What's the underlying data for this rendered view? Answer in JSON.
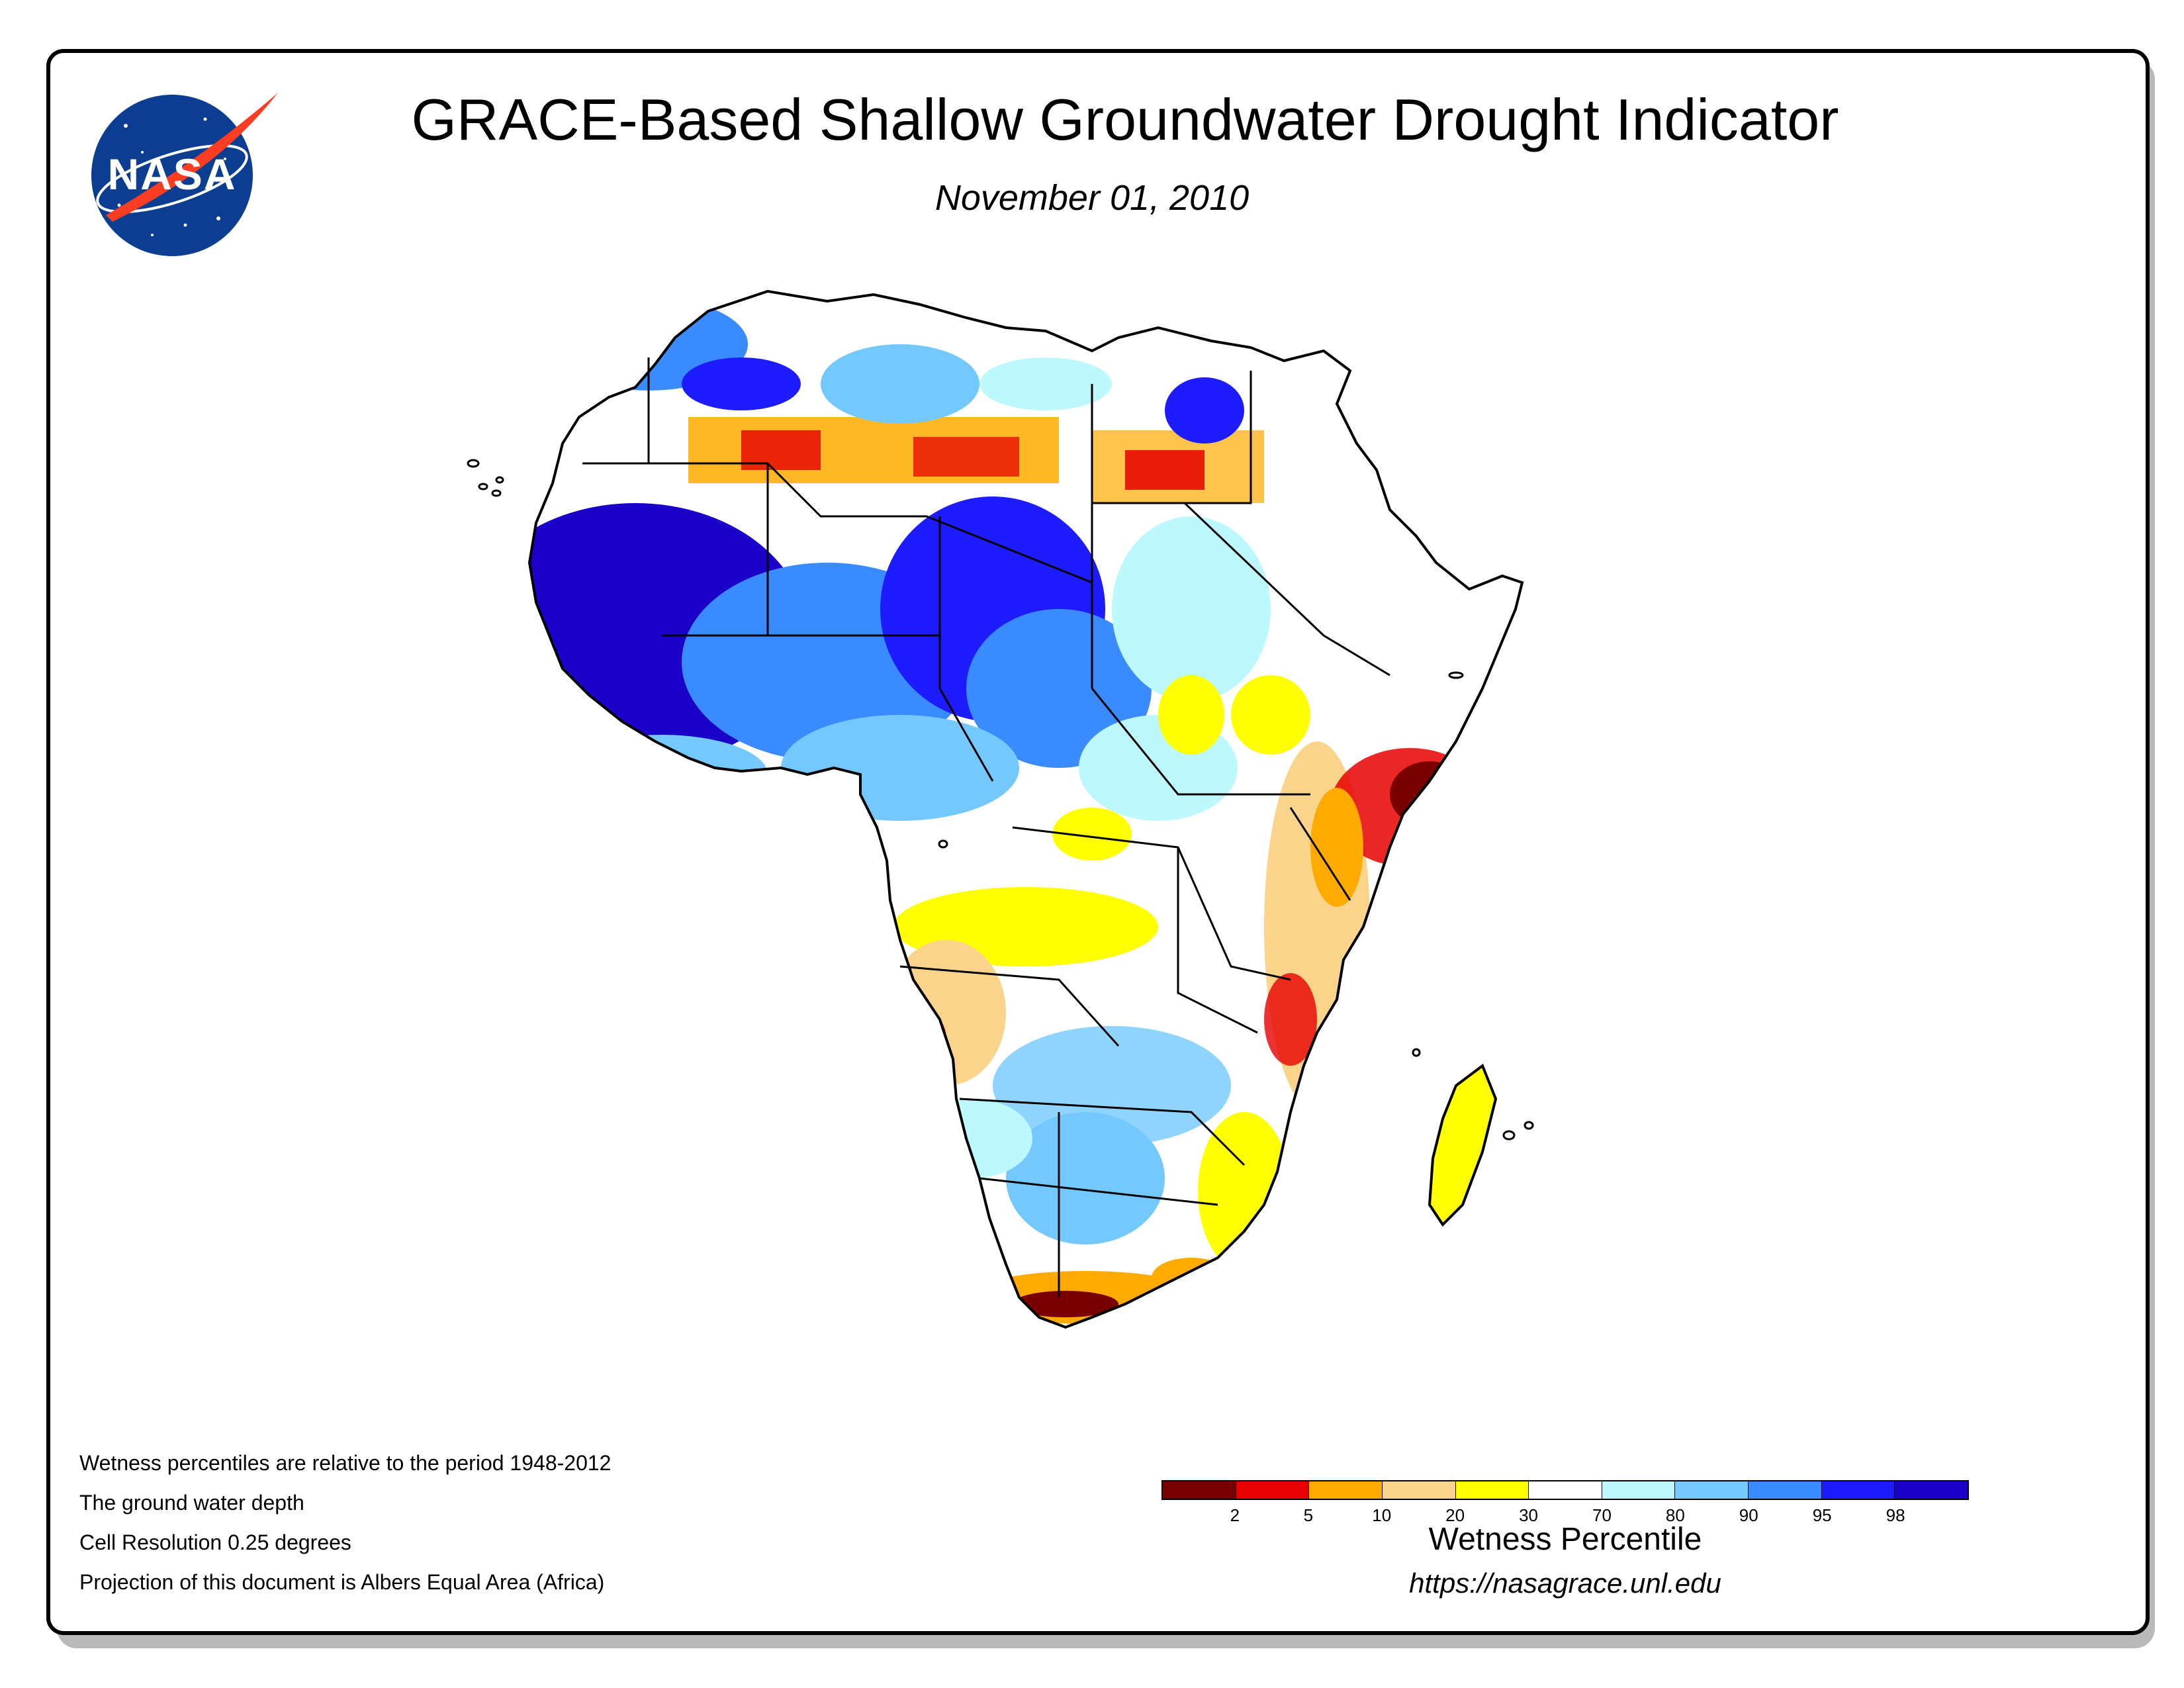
{
  "title": "GRACE-Based Shallow Groundwater Drought Indicator",
  "date": "November 01, 2010",
  "logo_text": "NASA",
  "notes": [
    "Wetness percentiles are relative to the period 1948-2012",
    "The ground water depth",
    "Cell Resolution 0.25 degrees",
    "Projection of this document is Albers Equal Area (Africa)"
  ],
  "legend": {
    "title": "Wetness Percentile",
    "colors": [
      "#7a0000",
      "#e60000",
      "#ffaa00",
      "#fad48b",
      "#ffff00",
      "#ffffff",
      "#bef8ff",
      "#73c9ff",
      "#3a8bff",
      "#1c1cff",
      "#1a00c8"
    ],
    "ticks": [
      "2",
      "5",
      "10",
      "20",
      "30",
      "70",
      "80",
      "90",
      "95",
      "98"
    ]
  },
  "url": "https://nasagrace.unl.edu",
  "map_region": "Africa"
}
